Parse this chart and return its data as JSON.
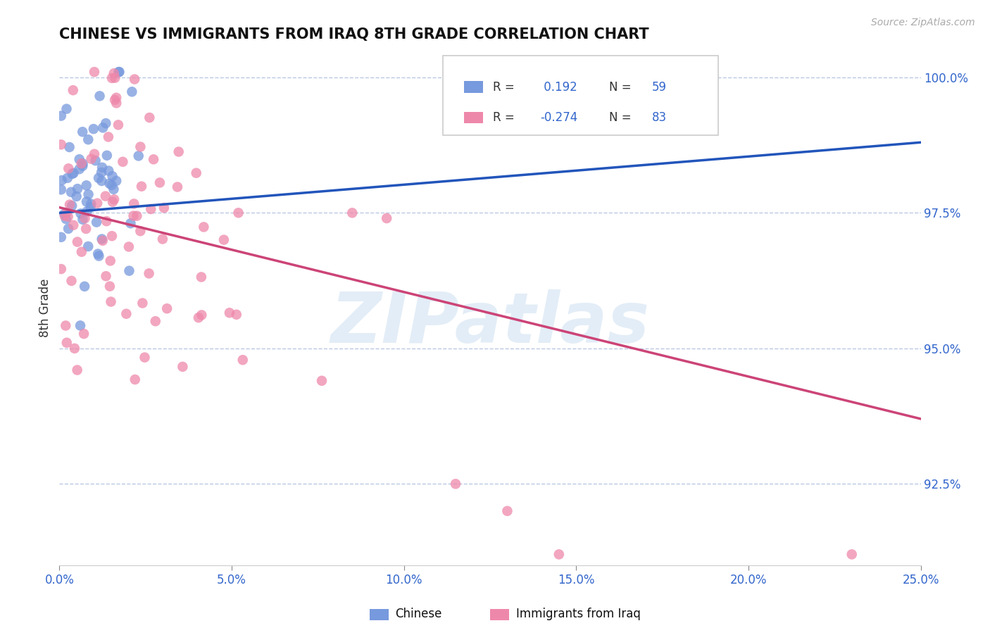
{
  "title": "CHINESE VS IMMIGRANTS FROM IRAQ 8TH GRADE CORRELATION CHART",
  "source": "Source: ZipAtlas.com",
  "ylabel": "8th Grade",
  "xlim": [
    0.0,
    0.25
  ],
  "ylim": [
    0.91,
    1.005
  ],
  "xticks": [
    0.0,
    0.05,
    0.1,
    0.15,
    0.2,
    0.25
  ],
  "xticklabels": [
    "0.0%",
    "5.0%",
    "10.0%",
    "15.0%",
    "20.0%",
    "25.0%"
  ],
  "yticks": [
    0.925,
    0.95,
    0.975,
    1.0
  ],
  "yticklabels": [
    "92.5%",
    "95.0%",
    "97.5%",
    "100.0%"
  ],
  "blue_R": 0.192,
  "blue_N": 59,
  "pink_R": -0.274,
  "pink_N": 83,
  "blue_color": "#7799dd",
  "pink_color": "#ee88aa",
  "blue_line_color": "#2255bb",
  "pink_line_color": "#cc4477",
  "watermark": "ZIPatlas",
  "background_color": "#ffffff",
  "legend_label_chinese": "Chinese",
  "legend_label_iraq": "Immigrants from Iraq"
}
